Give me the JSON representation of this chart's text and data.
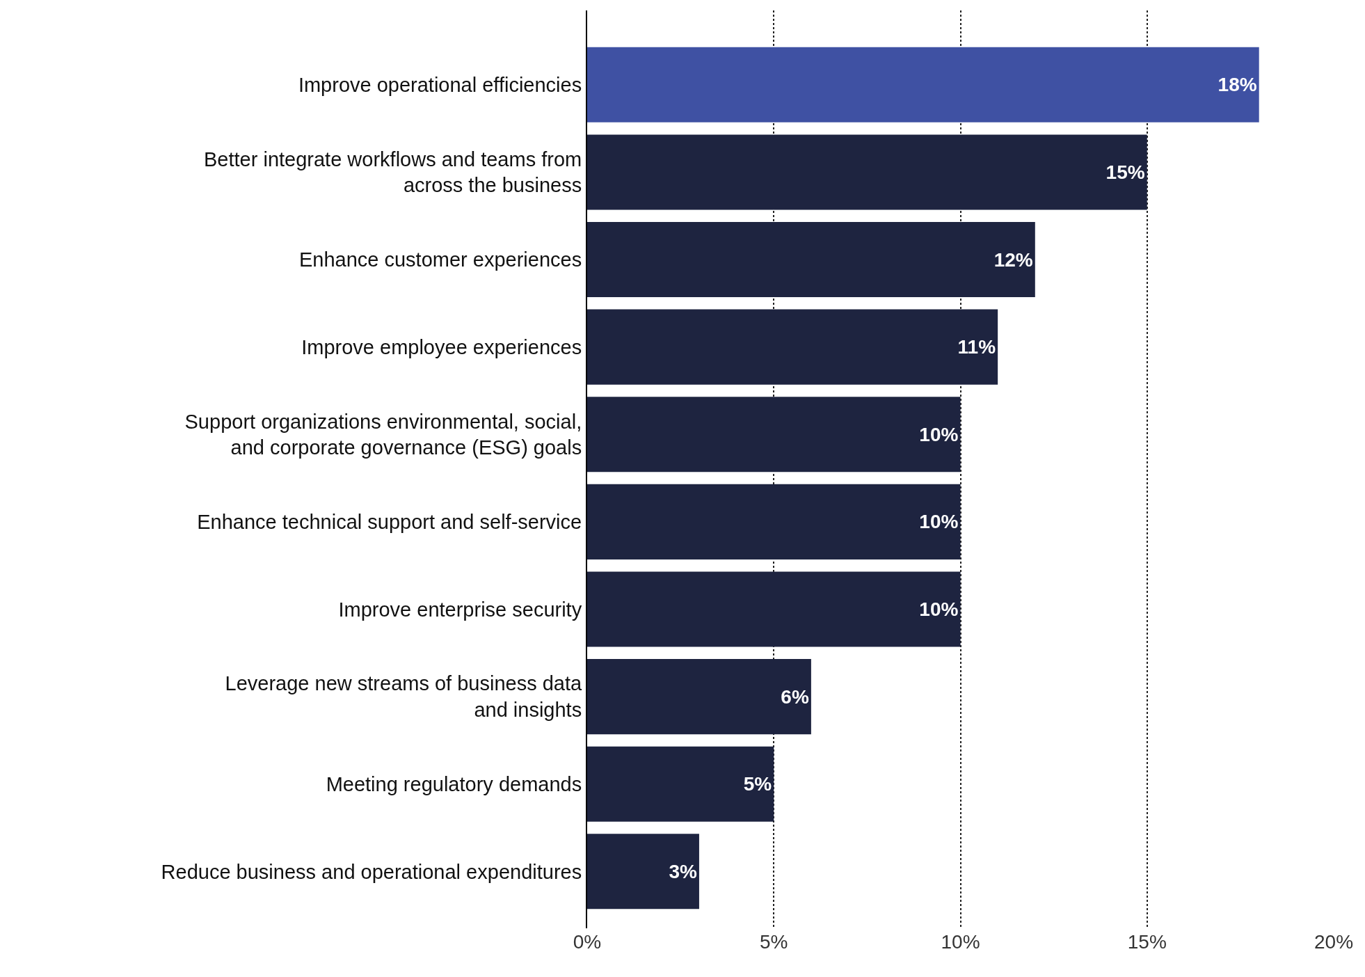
{
  "chart_data": {
    "type": "bar",
    "orientation": "horizontal",
    "categories": [
      "Improve operational efficiencies",
      "Better integrate workflows and teams from\nacross the business",
      "Enhance customer experiences",
      "Improve employee experiences",
      "Support organizations environmental, social,\nand corporate governance (ESG) goals",
      "Enhance technical support and self-service",
      "Improve enterprise security",
      "Leverage new streams of business data\nand insights",
      "Meeting regulatory demands",
      "Reduce business and operational expenditures"
    ],
    "values": [
      18,
      15,
      12,
      11,
      10,
      10,
      10,
      6,
      5,
      3
    ],
    "value_labels": [
      "18%",
      "15%",
      "12%",
      "11%",
      "10%",
      "10%",
      "10%",
      "6%",
      "5%",
      "3%"
    ],
    "colors": [
      "#3f51a3",
      "#1e2440",
      "#1e2440",
      "#1e2440",
      "#1e2440",
      "#1e2440",
      "#1e2440",
      "#1e2440",
      "#1e2440",
      "#1e2440"
    ],
    "xlim": [
      0,
      20
    ],
    "xticks": [
      {
        "value": 0,
        "label": "0%"
      },
      {
        "value": 5,
        "label": "5%"
      },
      {
        "value": 10,
        "label": "10%"
      },
      {
        "value": 15,
        "label": "15%"
      },
      {
        "value": 20,
        "label": "20%"
      }
    ],
    "grid": "x"
  }
}
